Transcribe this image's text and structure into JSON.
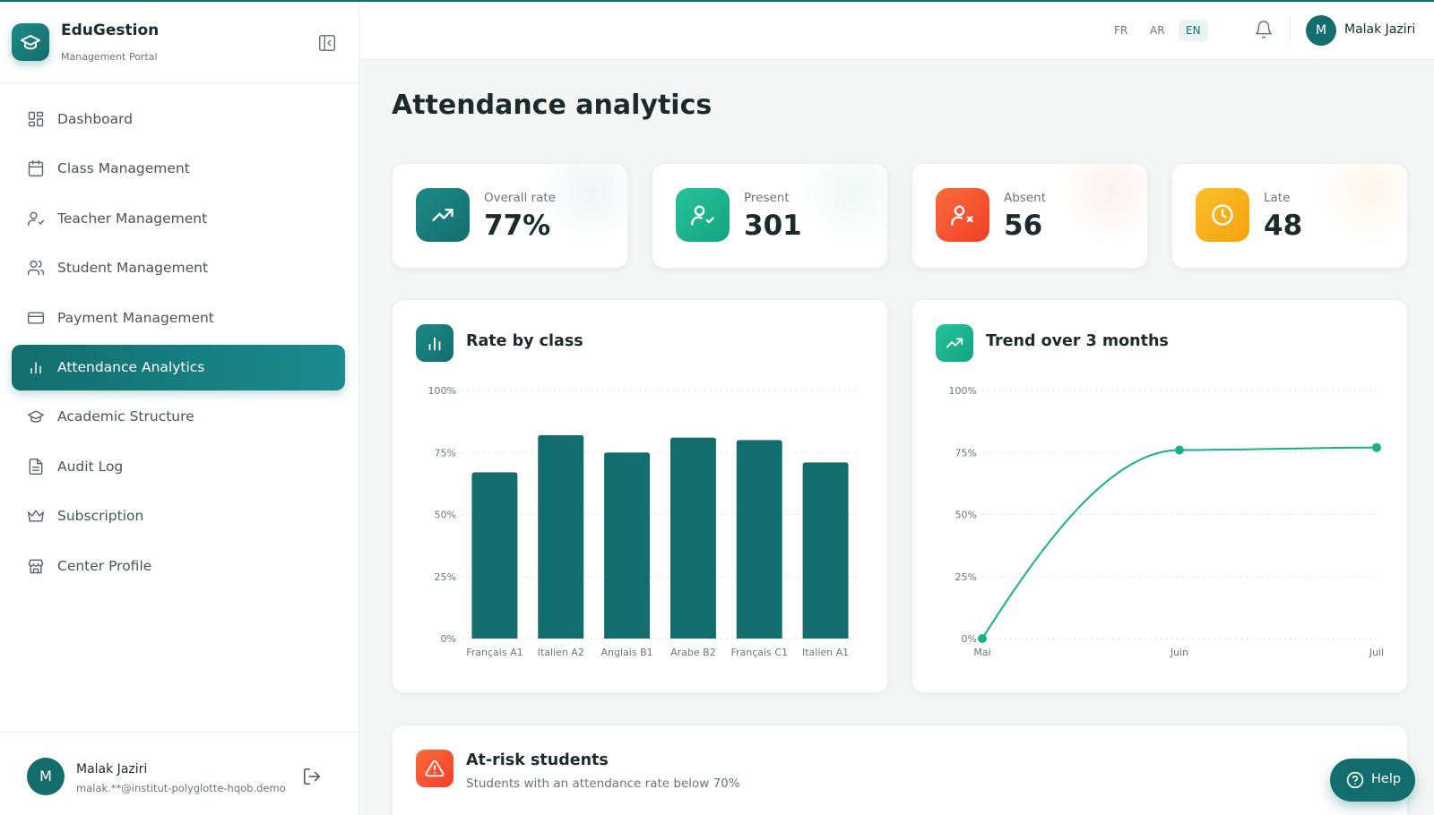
{
  "brand": {
    "name": "EduGestion",
    "subtitle": "Management Portal"
  },
  "sidebar": {
    "items": [
      {
        "label": "Dashboard",
        "icon": "dashboard-icon"
      },
      {
        "label": "Class Management",
        "icon": "calendar-icon"
      },
      {
        "label": "Teacher Management",
        "icon": "user-check-icon"
      },
      {
        "label": "Student Management",
        "icon": "users-icon"
      },
      {
        "label": "Payment Management",
        "icon": "credit-card-icon"
      },
      {
        "label": "Attendance Analytics",
        "icon": "bar-chart-icon",
        "active": true
      },
      {
        "label": "Academic Structure",
        "icon": "graduation-cap-icon"
      },
      {
        "label": "Audit Log",
        "icon": "file-text-icon"
      },
      {
        "label": "Subscription",
        "icon": "crown-icon"
      },
      {
        "label": "Center Profile",
        "icon": "store-icon"
      }
    ],
    "footer": {
      "avatar": "M",
      "name": "Malak Jaziri",
      "email": "malak.**@institut-polyglotte-hqob.demo"
    }
  },
  "header": {
    "languages": [
      "FR",
      "AR",
      "EN"
    ],
    "active_language": "EN",
    "avatar": "M",
    "user_name": "Malak Jaziri"
  },
  "page": {
    "title": "Attendance analytics"
  },
  "stats": [
    {
      "label": "Overall rate",
      "value": "77%",
      "color": "#146d6d",
      "icon": "trending-up-icon"
    },
    {
      "label": "Present",
      "value": "301",
      "color": "#17b08a",
      "icon": "user-check-icon"
    },
    {
      "label": "Absent",
      "value": "56",
      "color": "#f3502f",
      "icon": "user-x-icon"
    },
    {
      "label": "Late",
      "value": "48",
      "color": "#f7b012",
      "icon": "clock-icon"
    }
  ],
  "rate_by_class": {
    "title": "Rate by class"
  },
  "trend": {
    "title": "Trend over 3 months"
  },
  "at_risk": {
    "title": "At-risk students",
    "subtitle": "Students with an attendance rate below 70%"
  },
  "help_label": "Help",
  "chart_data": [
    {
      "type": "bar",
      "title": "Rate by class",
      "categories": [
        "Français A1",
        "Italien A2",
        "Anglais B1",
        "Arabe B2",
        "Français C1",
        "Italien A1"
      ],
      "values": [
        67,
        82,
        75,
        81,
        80,
        71
      ],
      "ylim": [
        0,
        100
      ],
      "yticks": [
        "0%",
        "25%",
        "50%",
        "75%",
        "100%"
      ],
      "grid": true,
      "color": "#146d6d"
    },
    {
      "type": "line",
      "title": "Trend over 3 months",
      "categories": [
        "Mai",
        "Juin",
        "Juil"
      ],
      "values": [
        0,
        76,
        77
      ],
      "ylim": [
        0,
        100
      ],
      "yticks": [
        "0%",
        "25%",
        "50%",
        "75%",
        "100%"
      ],
      "grid": true,
      "color": "#17b08a"
    }
  ]
}
